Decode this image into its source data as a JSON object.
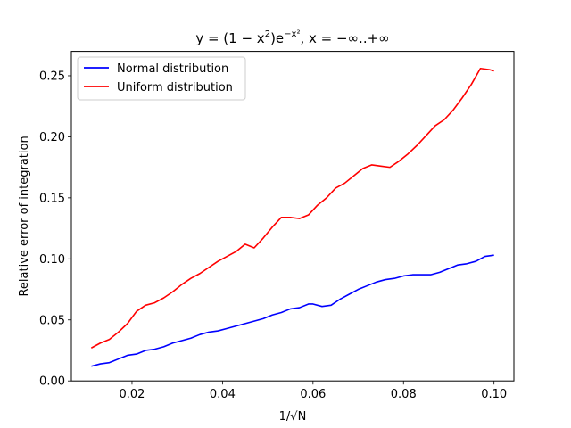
{
  "chart_data": {
    "type": "line",
    "title": "y = (1 − x²)e^(−x²),  x = −∞..+∞",
    "title_parts": {
      "lhs": "y = (1 − x",
      "sup1": "2",
      "mid": ")e",
      "sup2": "−x²",
      "rhs": ",  x = −∞..+∞"
    },
    "xlabel": "1/√N",
    "ylabel": "Relative error of integration",
    "xlim": [
      0.0066,
      0.1044
    ],
    "ylim": [
      0.0,
      0.27
    ],
    "xticks": [
      0.02,
      0.04,
      0.06,
      0.08,
      0.1
    ],
    "xtick_labels": [
      "0.02",
      "0.04",
      "0.06",
      "0.08",
      "0.10"
    ],
    "yticks": [
      0.0,
      0.05,
      0.1,
      0.15,
      0.2,
      0.25
    ],
    "ytick_labels": [
      "0.00",
      "0.05",
      "0.10",
      "0.15",
      "0.20",
      "0.25"
    ],
    "grid": false,
    "legend_position": "top-left",
    "series": [
      {
        "name": "Normal distribution",
        "color": "#0000ff",
        "points": [
          [
            0.011,
            0.012
          ],
          [
            0.013,
            0.014
          ],
          [
            0.015,
            0.015
          ],
          [
            0.017,
            0.018
          ],
          [
            0.019,
            0.021
          ],
          [
            0.021,
            0.022
          ],
          [
            0.023,
            0.025
          ],
          [
            0.025,
            0.026
          ],
          [
            0.027,
            0.028
          ],
          [
            0.029,
            0.031
          ],
          [
            0.031,
            0.033
          ],
          [
            0.033,
            0.035
          ],
          [
            0.035,
            0.038
          ],
          [
            0.037,
            0.04
          ],
          [
            0.039,
            0.041
          ],
          [
            0.041,
            0.043
          ],
          [
            0.043,
            0.045
          ],
          [
            0.045,
            0.047
          ],
          [
            0.047,
            0.049
          ],
          [
            0.049,
            0.051
          ],
          [
            0.051,
            0.054
          ],
          [
            0.053,
            0.056
          ],
          [
            0.055,
            0.059
          ],
          [
            0.057,
            0.06
          ],
          [
            0.059,
            0.063
          ],
          [
            0.06,
            0.063
          ],
          [
            0.062,
            0.061
          ],
          [
            0.064,
            0.062
          ],
          [
            0.066,
            0.067
          ],
          [
            0.068,
            0.071
          ],
          [
            0.07,
            0.075
          ],
          [
            0.072,
            0.078
          ],
          [
            0.074,
            0.081
          ],
          [
            0.076,
            0.083
          ],
          [
            0.078,
            0.084
          ],
          [
            0.08,
            0.086
          ],
          [
            0.082,
            0.087
          ],
          [
            0.084,
            0.087
          ],
          [
            0.086,
            0.087
          ],
          [
            0.088,
            0.089
          ],
          [
            0.09,
            0.092
          ],
          [
            0.092,
            0.095
          ],
          [
            0.094,
            0.096
          ],
          [
            0.096,
            0.098
          ],
          [
            0.098,
            0.102
          ],
          [
            0.1,
            0.103
          ]
        ]
      },
      {
        "name": "Uniform distribution",
        "color": "#ff0000",
        "points": [
          [
            0.011,
            0.027
          ],
          [
            0.013,
            0.031
          ],
          [
            0.015,
            0.034
          ],
          [
            0.017,
            0.04
          ],
          [
            0.019,
            0.047
          ],
          [
            0.021,
            0.057
          ],
          [
            0.023,
            0.062
          ],
          [
            0.025,
            0.064
          ],
          [
            0.027,
            0.068
          ],
          [
            0.029,
            0.073
          ],
          [
            0.031,
            0.079
          ],
          [
            0.033,
            0.084
          ],
          [
            0.035,
            0.088
          ],
          [
            0.037,
            0.093
          ],
          [
            0.039,
            0.098
          ],
          [
            0.041,
            0.102
          ],
          [
            0.043,
            0.106
          ],
          [
            0.045,
            0.112
          ],
          [
            0.047,
            0.109
          ],
          [
            0.049,
            0.117
          ],
          [
            0.051,
            0.126
          ],
          [
            0.053,
            0.134
          ],
          [
            0.055,
            0.134
          ],
          [
            0.057,
            0.133
          ],
          [
            0.059,
            0.136
          ],
          [
            0.061,
            0.144
          ],
          [
            0.063,
            0.15
          ],
          [
            0.065,
            0.158
          ],
          [
            0.067,
            0.162
          ],
          [
            0.069,
            0.168
          ],
          [
            0.071,
            0.174
          ],
          [
            0.073,
            0.177
          ],
          [
            0.075,
            0.176
          ],
          [
            0.077,
            0.175
          ],
          [
            0.079,
            0.18
          ],
          [
            0.081,
            0.186
          ],
          [
            0.083,
            0.193
          ],
          [
            0.085,
            0.201
          ],
          [
            0.087,
            0.209
          ],
          [
            0.089,
            0.214
          ],
          [
            0.091,
            0.222
          ],
          [
            0.093,
            0.232
          ],
          [
            0.095,
            0.243
          ],
          [
            0.097,
            0.256
          ],
          [
            0.099,
            0.255
          ],
          [
            0.1,
            0.254
          ]
        ]
      }
    ]
  }
}
